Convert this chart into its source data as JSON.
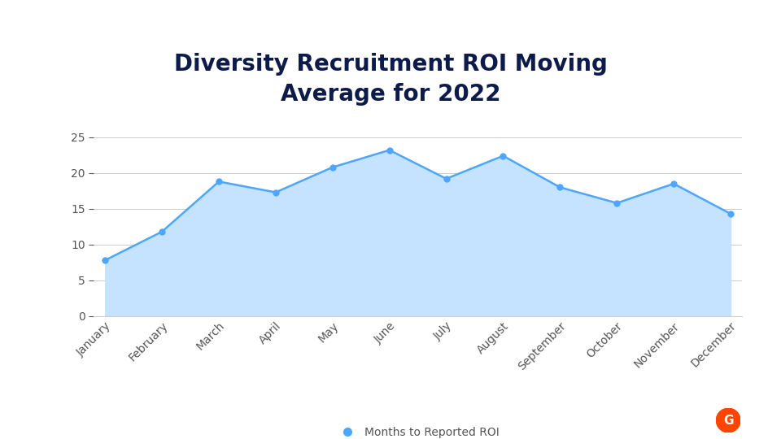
{
  "title": "Diversity Recruitment ROI Moving\nAverage for 2022",
  "title_color": "#0d1b4b",
  "title_fontsize": 20,
  "title_fontweight": "bold",
  "months": [
    "January",
    "February",
    "March",
    "April",
    "May",
    "June",
    "July",
    "August",
    "September",
    "October",
    "November",
    "December"
  ],
  "values": [
    7.8,
    11.8,
    18.8,
    17.3,
    20.8,
    23.2,
    19.2,
    22.4,
    18.0,
    15.8,
    18.5,
    14.3
  ],
  "line_color": "#4da6ff",
  "fill_color": "#c5e3ff",
  "fill_alpha": 1.0,
  "marker_color": "#4da6ff",
  "marker_size": 6,
  "ylim": [
    0,
    27
  ],
  "yticks": [
    0,
    5,
    10,
    15,
    20,
    25
  ],
  "grid_color": "#cccccc",
  "background_color": "#ffffff",
  "legend_label": "Months to Reported ROI",
  "legend_marker_color": "#4da6ff",
  "tick_label_color": "#555555",
  "tick_label_fontsize": 10
}
